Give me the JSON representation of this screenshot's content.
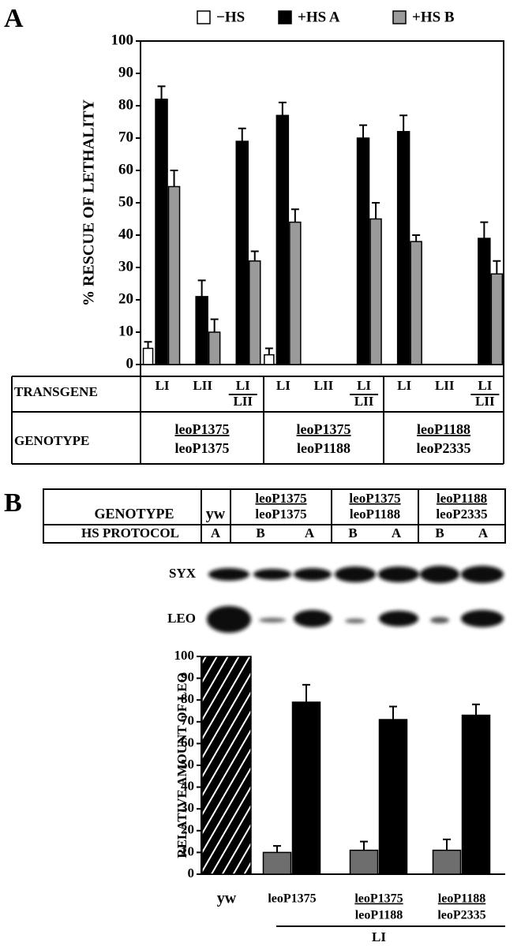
{
  "chart_data": [
    {
      "type": "grouped-bar",
      "panel": "A",
      "y_label": "% RESCUE OF LETHALITY",
      "row_labels": {
        "transgene": "TRANSGENE",
        "genotype": "GENOTYPE"
      },
      "categories": [
        [
          "LI"
        ],
        [
          "LII"
        ],
        [
          "LI",
          "LII"
        ],
        [
          "LI"
        ],
        [
          "LII"
        ],
        [
          "LI",
          "LII"
        ],
        [
          "LI"
        ],
        [
          "LII"
        ],
        [
          "LI",
          "LII"
        ]
      ],
      "groups": [
        [
          "leoP1375",
          "leoP1375"
        ],
        [
          "leoP1375",
          "leoP1188"
        ],
        [
          "leoP1188",
          "leoP2335"
        ]
      ],
      "series": [
        {
          "name": "−HS",
          "color": "#ffffff",
          "values": [
            5,
            null,
            null,
            3,
            null,
            null,
            null,
            null,
            null
          ],
          "errors": [
            2,
            null,
            null,
            2,
            null,
            null,
            null,
            null,
            null
          ]
        },
        {
          "name": "+HS A",
          "color": "#000000",
          "values": [
            82,
            21,
            69,
            77,
            null,
            70,
            72,
            null,
            39
          ],
          "errors": [
            4,
            5,
            4,
            4,
            null,
            4,
            5,
            null,
            5
          ]
        },
        {
          "name": "+HS B",
          "color": "#9a9a9a",
          "values": [
            55,
            10,
            32,
            44,
            null,
            45,
            38,
            null,
            28
          ],
          "errors": [
            5,
            4,
            3,
            4,
            null,
            5,
            2,
            null,
            4
          ]
        }
      ],
      "ylim": [
        0,
        100
      ],
      "yticks": [
        0,
        10,
        20,
        30,
        40,
        50,
        60,
        70,
        80,
        90,
        100
      ]
    },
    {
      "type": "grouped-bar",
      "panel": "B",
      "y_label": "RELATIVE AMOUNT OF LEO",
      "categories": [
        [
          "yw"
        ],
        [
          "leoP1375"
        ],
        [
          "leoP1375",
          "leoP1188"
        ],
        [
          "leoP1188",
          "leoP2335"
        ]
      ],
      "bracket_label": "LI",
      "table": {
        "genotype_label": "GENOTYPE",
        "protocol_label": "HS PROTOCOL",
        "columns": [
          {
            "genotype": [
              "yw"
            ],
            "protocols": [
              "A"
            ]
          },
          {
            "genotype": [
              "leoP1375",
              "leoP1375"
            ],
            "protocols": [
              "B",
              "A"
            ]
          },
          {
            "genotype": [
              "leoP1375",
              "leoP1188"
            ],
            "protocols": [
              "B",
              "A"
            ]
          },
          {
            "genotype": [
              "leoP1188",
              "leoP2335"
            ],
            "protocols": [
              "B",
              "A"
            ]
          }
        ]
      },
      "blots": [
        "SYX",
        "LEO"
      ],
      "series": [
        {
          "color": "#6e6e6e",
          "values": [
            null,
            10,
            11,
            11
          ],
          "errors": [
            null,
            3,
            4,
            5
          ]
        },
        {
          "color": "#000000",
          "values": [
            100,
            79,
            71,
            73
          ],
          "errors": [
            null,
            8,
            6,
            5
          ],
          "hatched": [
            true,
            false,
            false,
            false
          ]
        }
      ],
      "ylim": [
        0,
        100
      ],
      "yticks": [
        0,
        10,
        20,
        30,
        40,
        50,
        60,
        70,
        80,
        90,
        100
      ]
    }
  ]
}
